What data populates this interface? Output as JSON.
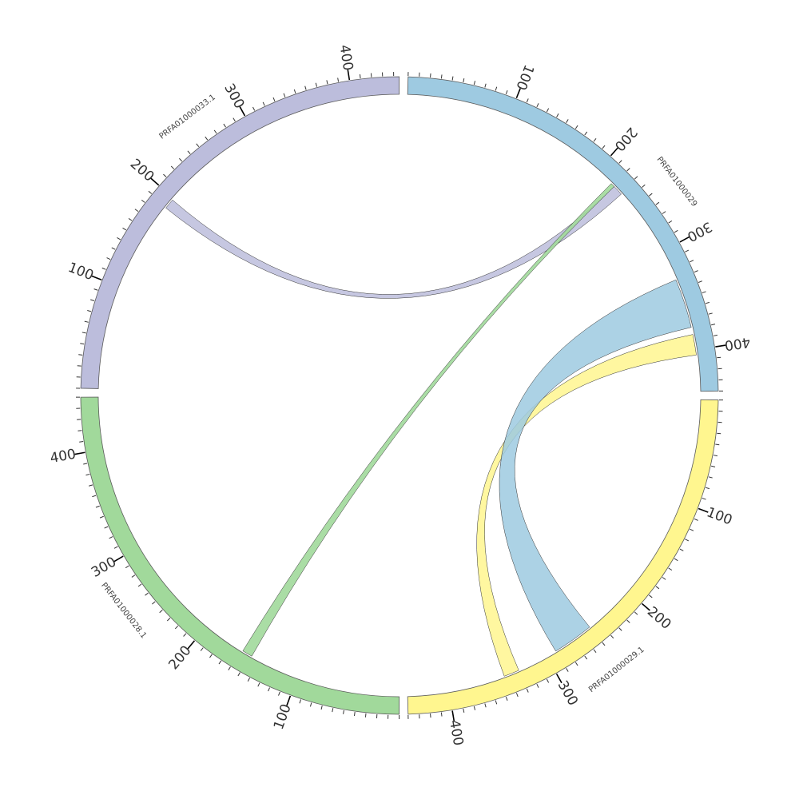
{
  "diagram": {
    "type": "circos",
    "segments": [
      {
        "id": "s_yellow",
        "name": "PRFA01000029.1",
        "length": 440,
        "color": "#fff68f"
      },
      {
        "id": "s_green",
        "name": "PRFA01000028.1",
        "length": 450,
        "color": "#a1d99b"
      },
      {
        "id": "s_purple",
        "name": "PRFA01000033.1",
        "length": 445,
        "color": "#bcbddc"
      },
      {
        "id": "s_blue",
        "name": "PRFA01000029",
        "length": 440,
        "color": "#9ecae1"
      }
    ],
    "tick_labels": [
      "100",
      "200",
      "300",
      "400"
    ],
    "links": [
      {
        "from": {
          "seg": "s_purple",
          "start": 188,
          "end": 198
        },
        "to": {
          "seg": "s_blue",
          "start": 222,
          "end": 232
        },
        "color": "#bcbddc",
        "opacity": 0.85
      },
      {
        "from": {
          "seg": "s_green",
          "start": 148,
          "end": 158
        },
        "to": {
          "seg": "s_blue",
          "start": 218,
          "end": 222
        },
        "color": "#a1d99b",
        "opacity": 0.9
      },
      {
        "from": {
          "seg": "s_yellow",
          "start": 330,
          "end": 345
        },
        "to": {
          "seg": "s_blue",
          "start": 385,
          "end": 405
        },
        "color": "#fff68f",
        "opacity": 0.85
      },
      {
        "from": {
          "seg": "s_blue",
          "start": 330,
          "end": 378
        },
        "to": {
          "seg": "s_yellow",
          "start": 250,
          "end": 290
        },
        "color": "#9ecae1",
        "opacity": 0.85
      }
    ]
  }
}
